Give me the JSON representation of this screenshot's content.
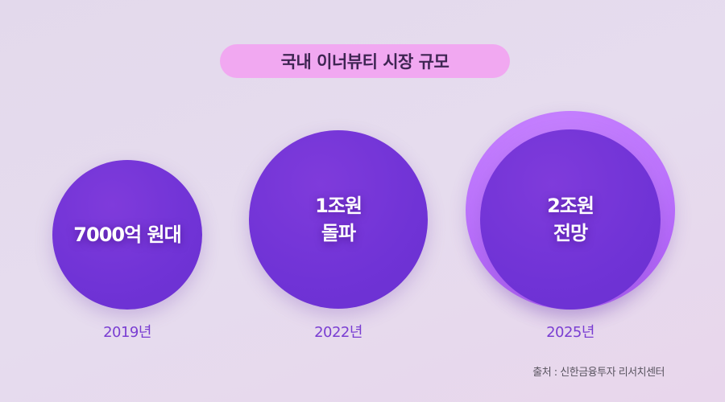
{
  "title": "국내 이너뷰티 시장 규모",
  "items": [
    {
      "year": "2019년",
      "line1": "7000억 원대",
      "line2": ""
    },
    {
      "year": "2022년",
      "line1": "1조원",
      "line2": "돌파"
    },
    {
      "year": "2025년",
      "line1": "2조원",
      "line2": "전망"
    }
  ],
  "source": "출처 : 신한금융투자 리서치센터",
  "colors": {
    "circle": "#7033d6",
    "outer_circle": "#bc74fc",
    "title_pill": "#f1a8f1",
    "year_text": "#7a3ed2"
  }
}
